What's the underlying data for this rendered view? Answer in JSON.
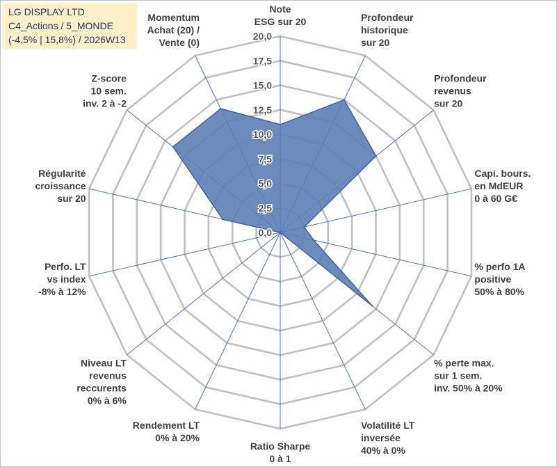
{
  "info_box": {
    "line1": "LG DISPLAY LTD",
    "line2": "C4_Actions / 5_MONDE",
    "line3": "(-4,5% | 15,8%) / 2026W13"
  },
  "chart_data": {
    "type": "radar",
    "title": "",
    "rlim": [
      0,
      20
    ],
    "ticks": [
      "0,0",
      "2,5",
      "5,0",
      "7,5",
      "10,0",
      "12,5",
      "15,0",
      "17,5",
      "20,0"
    ],
    "axes": [
      [
        "Note",
        "ESG sur 20"
      ],
      [
        "Profondeur",
        "historique",
        "sur 20"
      ],
      [
        "Profondeur",
        "revenus",
        "sur 20"
      ],
      [
        "Capi. bours.",
        "en MdEUR",
        "0 à 60 G€"
      ],
      [
        "% perfo 1A",
        "positive",
        "50% à 80%"
      ],
      [
        "% perte max.",
        "sur 1 sem.",
        "inv. 50% à 20%"
      ],
      [
        "Volatilité LT",
        "inversée",
        "40% à 0%"
      ],
      [
        "Ratio Sharpe",
        "0 à 1"
      ],
      [
        "Rendement LT",
        "0% à 20%"
      ],
      [
        "Niveau LT",
        "revenus",
        "reccurents",
        "0% à 6%"
      ],
      [
        "Perfo. LT",
        "vs index",
        "-8% à 12%"
      ],
      [
        "Régularité",
        "croissance",
        "sur 20"
      ],
      [
        "Z-score",
        "10 sem.",
        "inv. 2 à -2"
      ],
      [
        "Momentum",
        "Achat (20) /",
        "Vente (0)"
      ]
    ],
    "series": [
      {
        "name": "LG DISPLAY LTD",
        "values": [
          11,
          15,
          12.5,
          2.5,
          3.5,
          12,
          0,
          0,
          0,
          0,
          0,
          6,
          14,
          14
        ]
      }
    ],
    "grid": true,
    "colors": {
      "fill": "#5b7fb5",
      "stroke": "#3f64a0",
      "grid": "#bfbfbf",
      "spoke": "#4472c4",
      "text": "#404040"
    }
  }
}
